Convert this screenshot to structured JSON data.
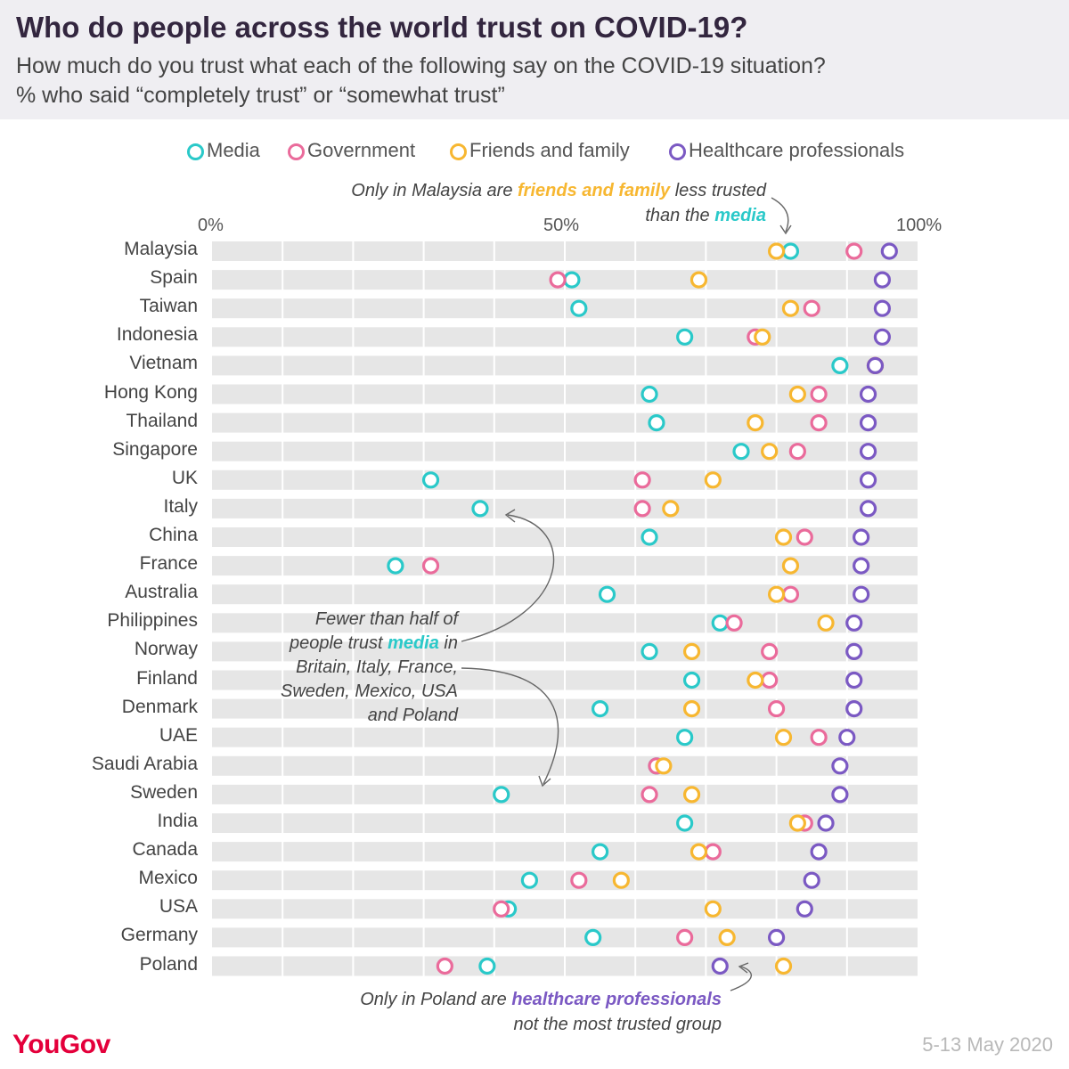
{
  "header": {
    "title": "Who do people across the world trust on COVID-19?",
    "subtitle_line1": "How much do you trust what each of the following say on the COVID-19 situation?",
    "subtitle_line2": "% who said “completely trust” or “somewhat trust”"
  },
  "colors": {
    "media": "#2ac9c9",
    "government": "#ea6b9b",
    "friends_family": "#f7b731",
    "healthcare": "#7b59c3",
    "row_background": "#e6e6e6",
    "header_background": "#efeef2",
    "logo": "#e4003b"
  },
  "annotations": {
    "malaysia": {
      "line1_pre": "Only in Malaysia are ",
      "line1_hl": "friends and family",
      "line1_post": " less trusted",
      "line2_pre": "than the ",
      "line2_hl": "media"
    },
    "media": {
      "line1": "Fewer than half of",
      "line2_pre": "people trust ",
      "line2_hl": "media",
      "line2_post": " in",
      "line3": "Britain, Italy, France,",
      "line4": "Sweden, Mexico, USA",
      "line5": "and Poland"
    },
    "poland": {
      "line1_pre": "Only in Poland are ",
      "line1_hl": "healthcare professionals",
      "line2": "not the most trusted group"
    }
  },
  "footer": {
    "logo": "YouGov",
    "date": "5-13 May 2020"
  },
  "chart_data": {
    "type": "scatter",
    "title": "Who do people across the world trust on COVID-19?",
    "subtitle": "How much do you trust what each of the following say on the COVID-19 situation? % who said “completely trust” or “somewhat trust”",
    "x_ticks": [
      "0%",
      "50%",
      "100%"
    ],
    "xlim": [
      0,
      100
    ],
    "grid": false,
    "legend_position": "top",
    "categories": [
      "Malaysia",
      "Spain",
      "Taiwan",
      "Indonesia",
      "Vietnam",
      "Hong Kong",
      "Thailand",
      "Singapore",
      "UK",
      "Italy",
      "China",
      "France",
      "Australia",
      "Philippines",
      "Norway",
      "Finland",
      "Denmark",
      "UAE",
      "Saudi Arabia",
      "Sweden",
      "India",
      "Canada",
      "Mexico",
      "USA",
      "Germany",
      "Poland"
    ],
    "series": [
      {
        "name": "Media",
        "key": "media",
        "values": [
          82,
          51,
          52,
          67,
          89,
          62,
          63,
          75,
          31,
          38,
          62,
          26,
          56,
          72,
          62,
          68,
          55,
          67,
          63,
          41,
          67,
          55,
          45,
          42,
          54,
          39
        ]
      },
      {
        "name": "Government",
        "key": "government",
        "values": [
          91,
          49,
          85,
          77,
          94,
          86,
          86,
          83,
          61,
          61,
          84,
          31,
          82,
          74,
          79,
          79,
          80,
          86,
          63,
          62,
          84,
          71,
          52,
          41,
          67,
          33
        ]
      },
      {
        "name": "Friends and family",
        "key": "friends_family",
        "values": [
          80,
          69,
          82,
          78,
          94,
          83,
          77,
          79,
          71,
          65,
          81,
          82,
          80,
          87,
          68,
          77,
          68,
          81,
          64,
          68,
          83,
          69,
          58,
          71,
          73,
          81
        ]
      },
      {
        "name": "Healthcare professionals",
        "key": "healthcare",
        "values": [
          96,
          95,
          95,
          95,
          94,
          93,
          93,
          93,
          93,
          93,
          92,
          92,
          92,
          91,
          91,
          91,
          91,
          90,
          89,
          89,
          87,
          86,
          85,
          84,
          80,
          72
        ]
      }
    ]
  }
}
